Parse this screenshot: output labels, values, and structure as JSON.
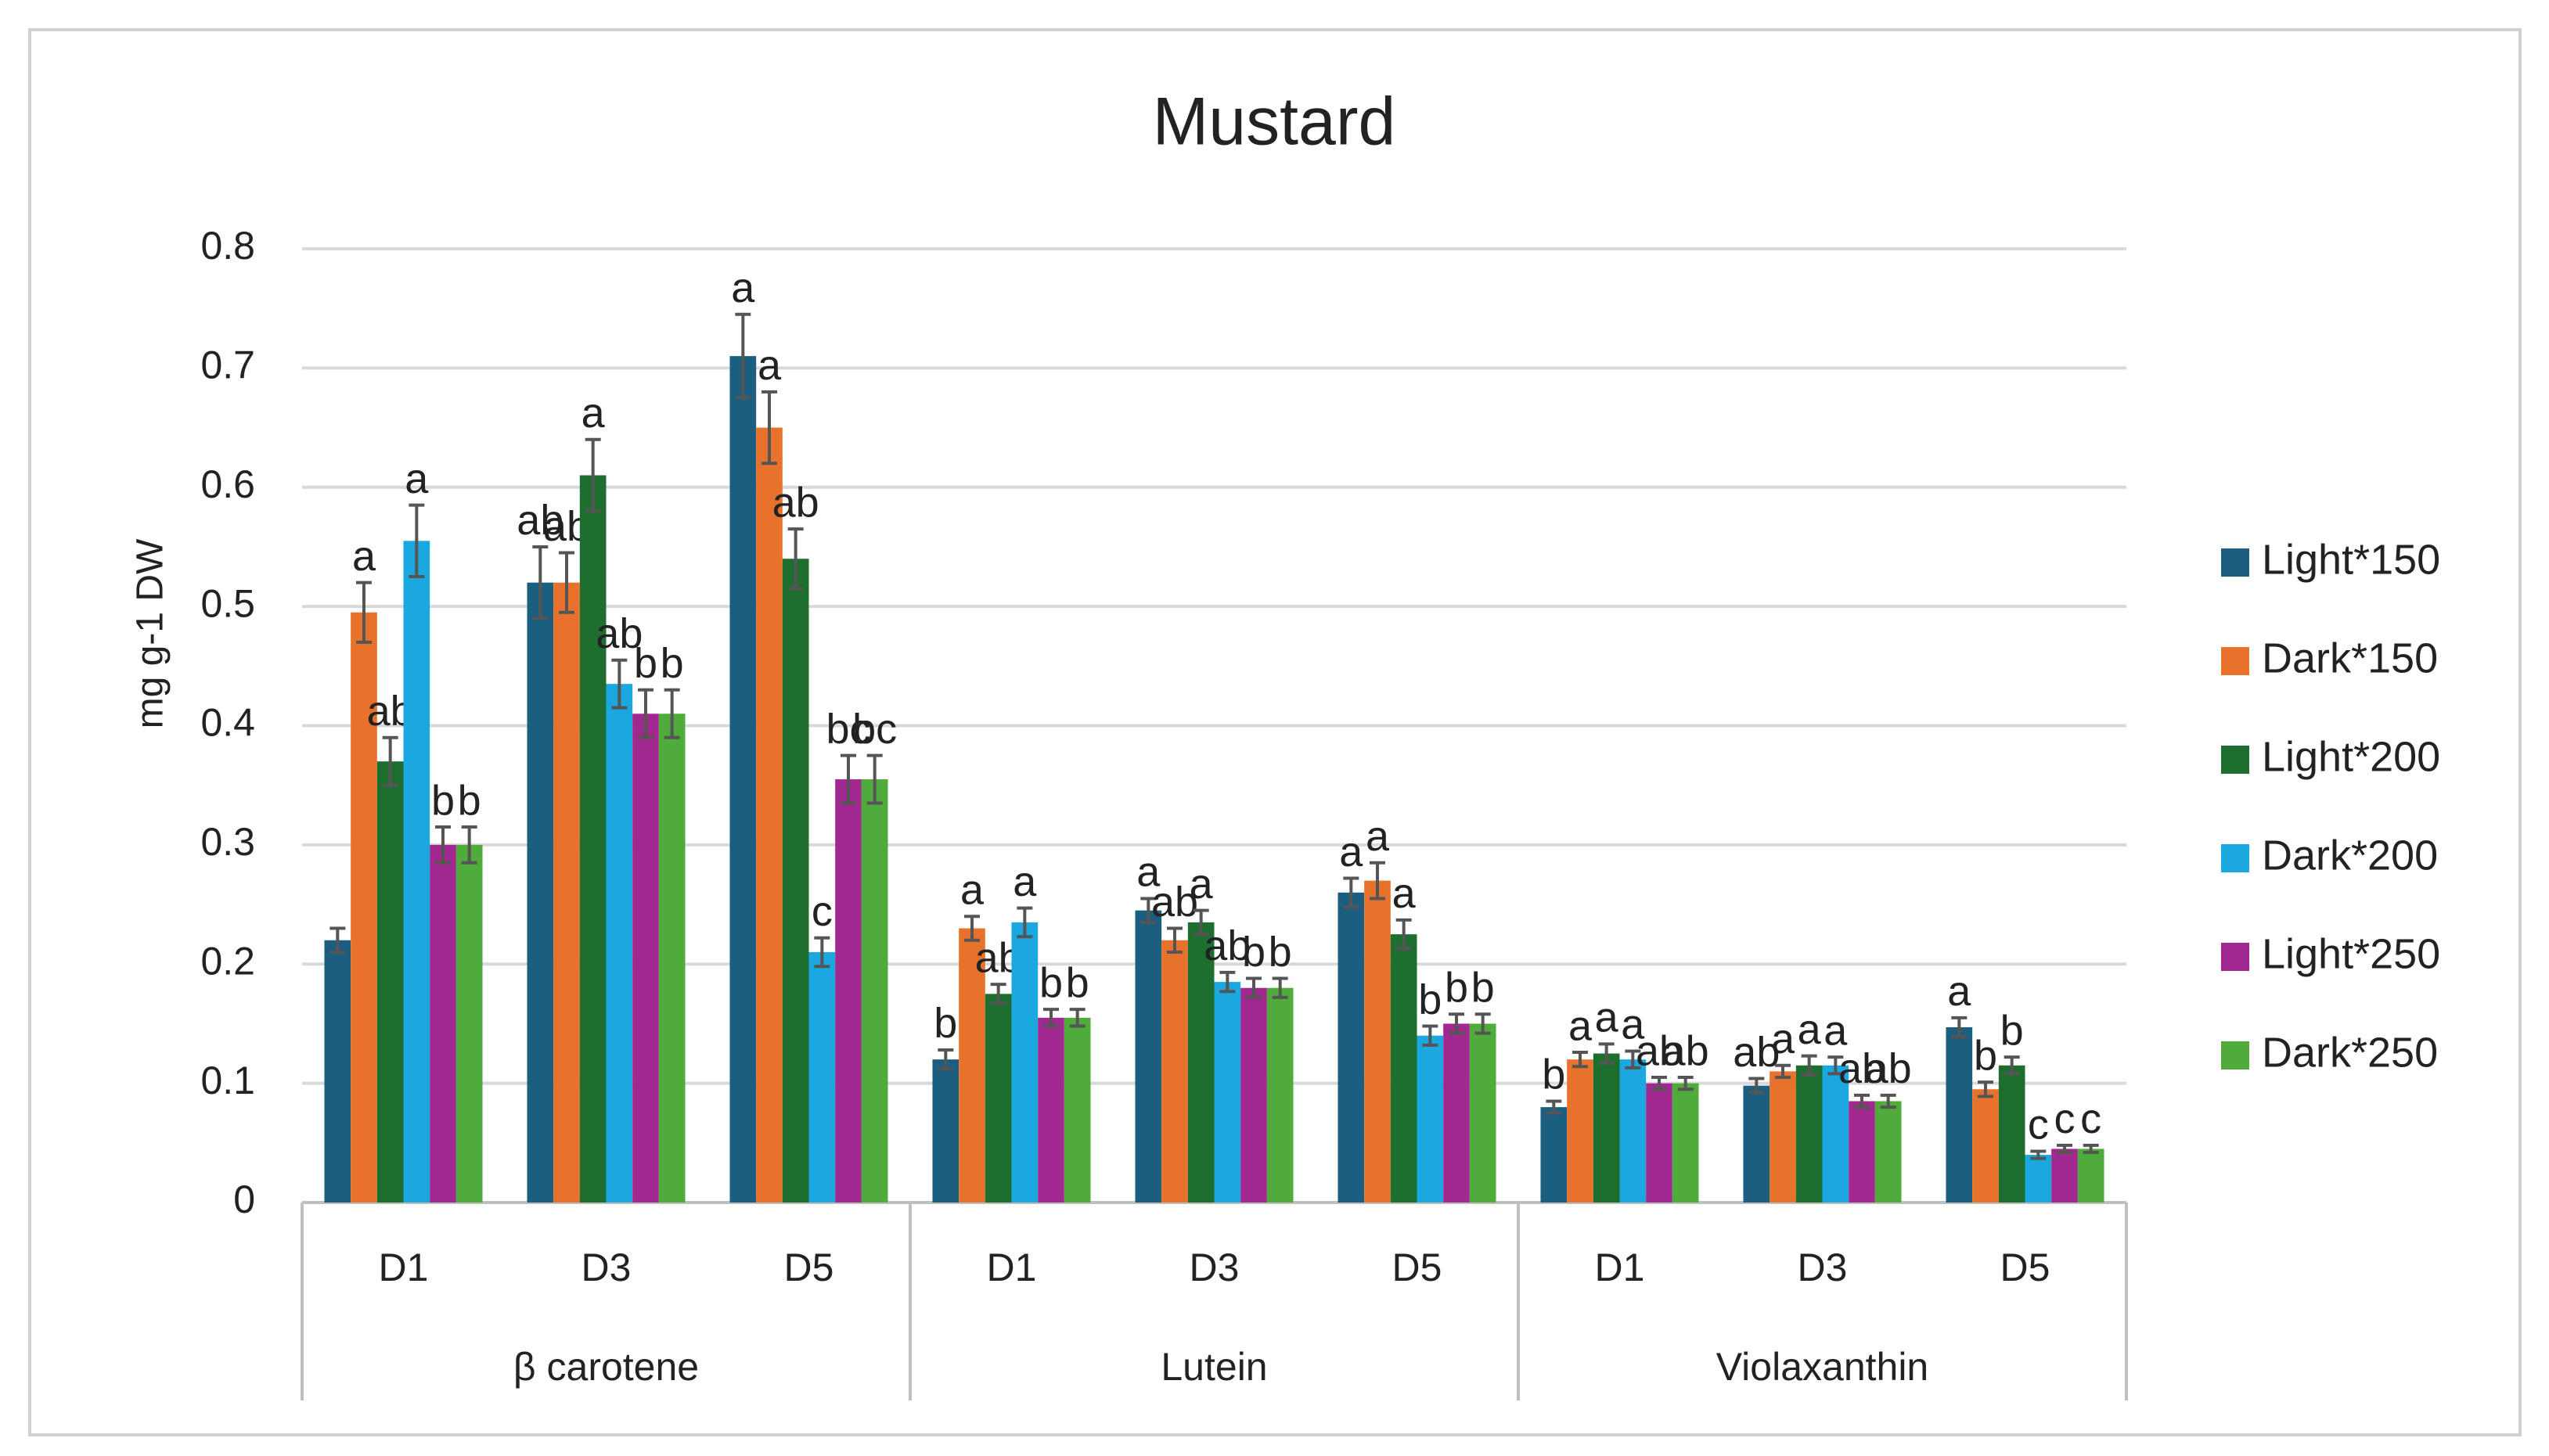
{
  "chart_data": {
    "type": "bar",
    "title": "Mustard",
    "y_label": "mg g-1 DW",
    "groups": [
      {
        "name": "β carotene",
        "categories": [
          "D1",
          "D3",
          "D5"
        ]
      },
      {
        "name": "Lutein",
        "categories": [
          "D1",
          "D3",
          "D5"
        ]
      },
      {
        "name": "Violaxanthin",
        "categories": [
          "D1",
          "D3",
          "D5"
        ]
      }
    ],
    "ylim": [
      0,
      0.8
    ],
    "yticks": [
      0,
      0.1,
      0.2,
      0.3,
      0.4,
      0.5,
      0.6,
      0.7,
      0.8
    ],
    "grid": true,
    "legend": "right",
    "series": [
      {
        "name": "Light*150",
        "color": "#1b5e80",
        "values": [
          0.22,
          0.52,
          0.71,
          0.12,
          0.245,
          0.26,
          0.08,
          0.098,
          0.147
        ],
        "errors": [
          0.01,
          0.03,
          0.035,
          0.008,
          0.01,
          0.012,
          0.005,
          0.006,
          0.008
        ],
        "letters": [
          null,
          "ab",
          "a",
          "b",
          "a",
          "a",
          "b",
          "ab",
          "a"
        ]
      },
      {
        "name": "Dark*150",
        "color": "#e8722c",
        "values": [
          0.495,
          0.52,
          0.65,
          0.23,
          0.22,
          0.27,
          0.12,
          0.11,
          0.095
        ],
        "errors": [
          0.025,
          0.025,
          0.03,
          0.01,
          0.01,
          0.015,
          0.006,
          0.005,
          0.006
        ],
        "letters": [
          "a",
          "ab",
          "a",
          "a",
          "ab",
          "a",
          "a",
          "a",
          "b"
        ]
      },
      {
        "name": "Light*200",
        "color": "#1d6e2f",
        "values": [
          0.37,
          0.61,
          0.54,
          0.175,
          0.235,
          0.225,
          0.125,
          0.115,
          0.115
        ],
        "errors": [
          0.02,
          0.03,
          0.025,
          0.008,
          0.01,
          0.012,
          0.008,
          0.008,
          0.007
        ],
        "letters": [
          "ab",
          "a",
          "ab",
          "ab",
          "a",
          "a",
          "a",
          "a",
          "b"
        ]
      },
      {
        "name": "Dark*200",
        "color": "#1ba7df",
        "values": [
          0.555,
          0.435,
          0.21,
          0.235,
          0.185,
          0.14,
          0.12,
          0.115,
          0.04
        ],
        "errors": [
          0.03,
          0.02,
          0.012,
          0.012,
          0.008,
          0.008,
          0.007,
          0.007,
          0.003
        ],
        "letters": [
          "a",
          "ab",
          "c",
          "a",
          "ab",
          "b",
          "a",
          "a",
          "c"
        ]
      },
      {
        "name": "Light*250",
        "color": "#a0288f",
        "values": [
          0.3,
          0.41,
          0.355,
          0.155,
          0.18,
          0.15,
          0.1,
          0.085,
          0.045
        ],
        "errors": [
          0.015,
          0.02,
          0.02,
          0.007,
          0.008,
          0.008,
          0.005,
          0.005,
          0.003
        ],
        "letters": [
          "b",
          "b",
          "bc",
          "b",
          "b",
          "b",
          "ab",
          "ab",
          "c"
        ]
      },
      {
        "name": "Dark*250",
        "color": "#4fab3a",
        "values": [
          0.3,
          0.41,
          0.355,
          0.155,
          0.18,
          0.15,
          0.1,
          0.085,
          0.045
        ],
        "errors": [
          0.015,
          0.02,
          0.02,
          0.007,
          0.008,
          0.008,
          0.005,
          0.005,
          0.003
        ],
        "letters": [
          "b",
          "b",
          "bc",
          "b",
          "b",
          "b",
          "ab",
          "ab",
          "c"
        ]
      }
    ]
  }
}
